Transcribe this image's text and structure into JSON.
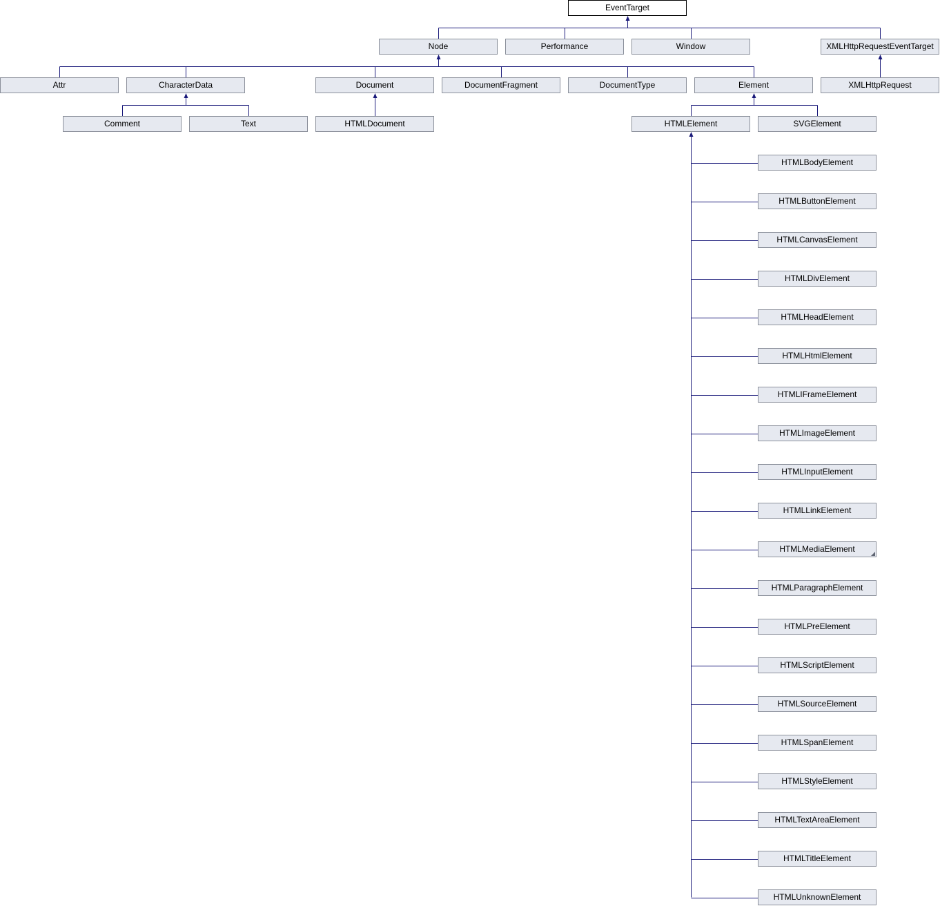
{
  "colors": {
    "edge": "#1a1a7a",
    "node_fill": "#e6e9f0",
    "node_border": "#8a8f9a",
    "root_fill": "#ffffff",
    "root_border": "#000000"
  },
  "nodes": {
    "EventTarget": "EventTarget",
    "Node": "Node",
    "Performance": "Performance",
    "Window": "Window",
    "XMLHttpRequestEventTarget": "XMLHttpRequestEventTarget",
    "Attr": "Attr",
    "CharacterData": "CharacterData",
    "Document": "Document",
    "DocumentFragment": "DocumentFragment",
    "DocumentType": "DocumentType",
    "Element": "Element",
    "XMLHttpRequest": "XMLHttpRequest",
    "Comment": "Comment",
    "Text": "Text",
    "HTMLDocument": "HTMLDocument",
    "HTMLElement": "HTMLElement",
    "SVGElement": "SVGElement",
    "HTMLBodyElement": "HTMLBodyElement",
    "HTMLButtonElement": "HTMLButtonElement",
    "HTMLCanvasElement": "HTMLCanvasElement",
    "HTMLDivElement": "HTMLDivElement",
    "HTMLHeadElement": "HTMLHeadElement",
    "HTMLHtmlElement": "HTMLHtmlElement",
    "HTMLIFrameElement": "HTMLIFrameElement",
    "HTMLImageElement": "HTMLImageElement",
    "HTMLInputElement": "HTMLInputElement",
    "HTMLLinkElement": "HTMLLinkElement",
    "HTMLMediaElement": "HTMLMediaElement",
    "HTMLParagraphElement": "HTMLParagraphElement",
    "HTMLPreElement": "HTMLPreElement",
    "HTMLScriptElement": "HTMLScriptElement",
    "HTMLSourceElement": "HTMLSourceElement",
    "HTMLSpanElement": "HTMLSpanElement",
    "HTMLStyleElement": "HTMLStyleElement",
    "HTMLTextAreaElement": "HTMLTextAreaElement",
    "HTMLTitleElement": "HTMLTitleElement",
    "HTMLUnknownElement": "HTMLUnknownElement"
  }
}
